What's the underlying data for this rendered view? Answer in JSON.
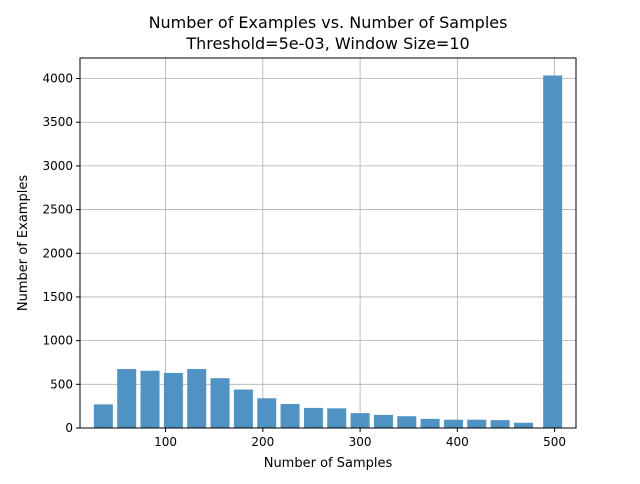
{
  "chart_data": {
    "type": "bar",
    "title": "Number of Examples vs. Number of Samples",
    "subtitle": "Threshold=5e-03, Window Size=10",
    "xlabel": "Number of Samples",
    "ylabel": "Number of Examples",
    "xlim": [
      12,
      522
    ],
    "ylim": [
      0,
      4235
    ],
    "x_ticks": [
      100,
      200,
      300,
      400,
      500
    ],
    "y_ticks": [
      0,
      500,
      1000,
      1500,
      2000,
      2500,
      3000,
      3500,
      4000
    ],
    "grid": true,
    "bar_color": "#4f92c4",
    "bars": [
      {
        "x": 36,
        "value": 270
      },
      {
        "x": 60,
        "value": 675
      },
      {
        "x": 84,
        "value": 655
      },
      {
        "x": 108,
        "value": 630
      },
      {
        "x": 132,
        "value": 675
      },
      {
        "x": 156,
        "value": 570
      },
      {
        "x": 180,
        "value": 440
      },
      {
        "x": 204,
        "value": 340
      },
      {
        "x": 228,
        "value": 275
      },
      {
        "x": 252,
        "value": 230
      },
      {
        "x": 276,
        "value": 225
      },
      {
        "x": 300,
        "value": 170
      },
      {
        "x": 324,
        "value": 150
      },
      {
        "x": 348,
        "value": 135
      },
      {
        "x": 372,
        "value": 105
      },
      {
        "x": 396,
        "value": 95
      },
      {
        "x": 420,
        "value": 95
      },
      {
        "x": 444,
        "value": 90
      },
      {
        "x": 468,
        "value": 60
      },
      {
        "x": 498,
        "value": 4035
      }
    ]
  }
}
